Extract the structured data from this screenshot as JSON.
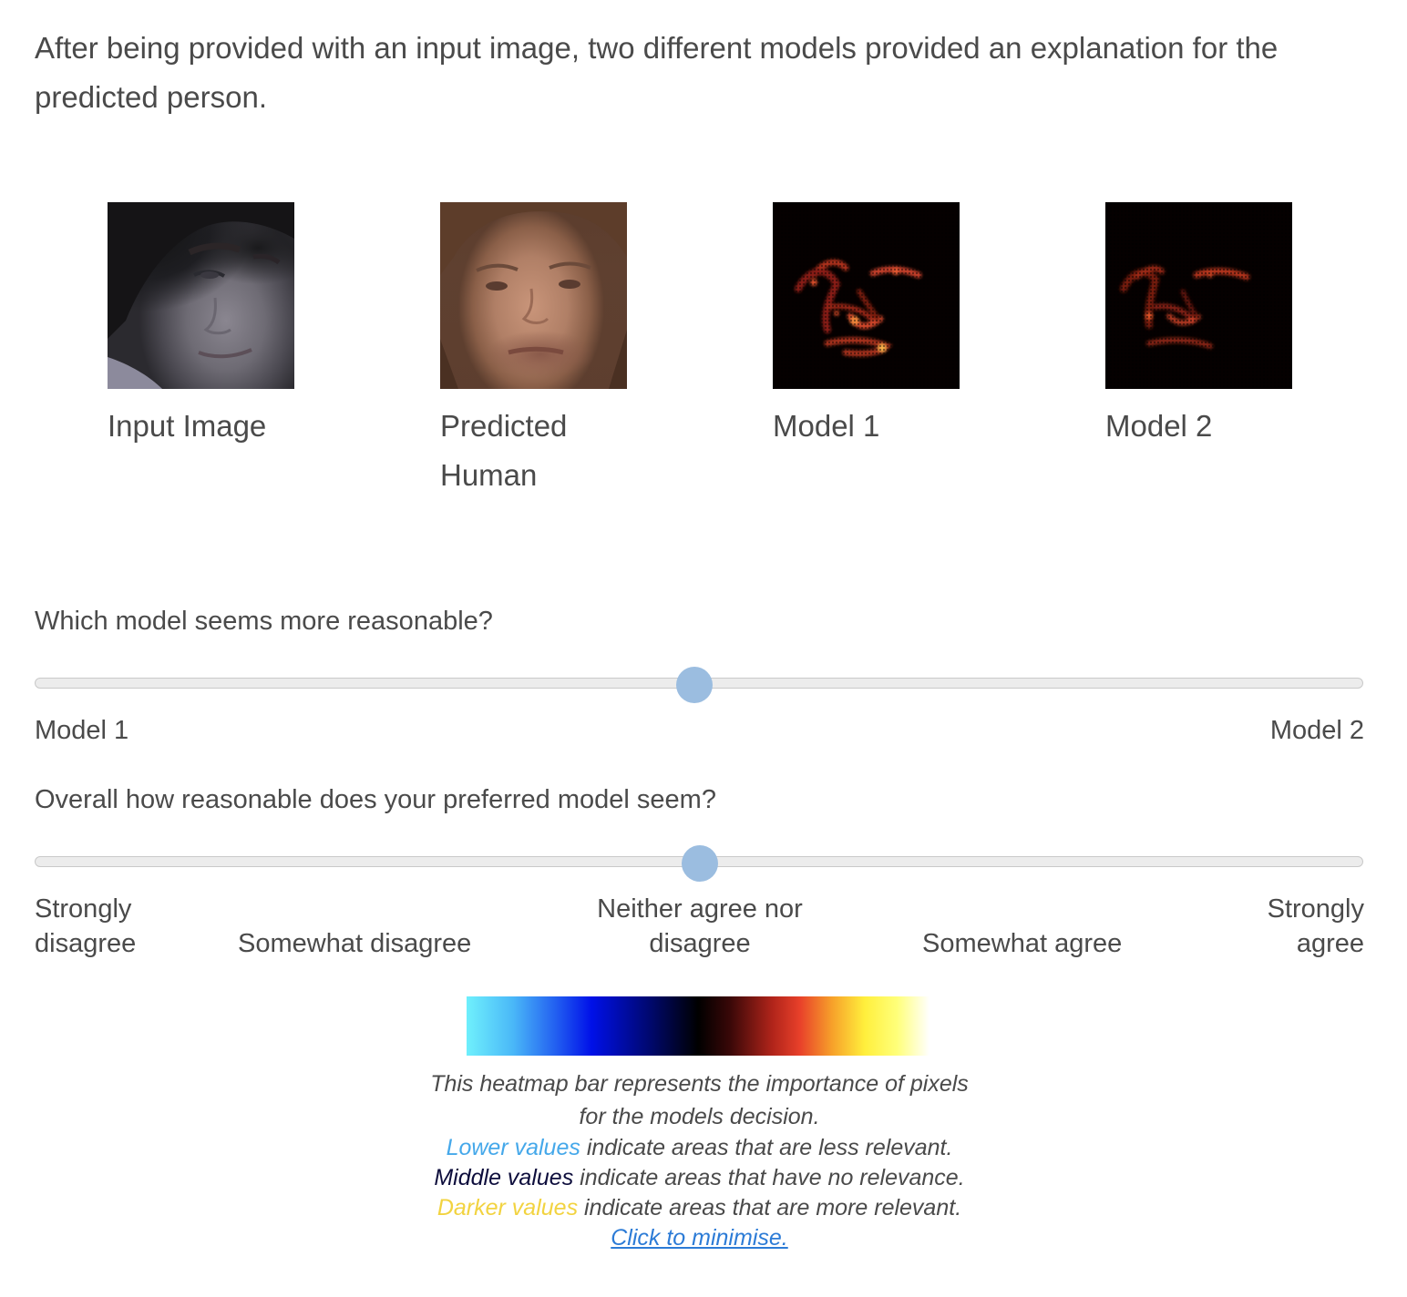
{
  "intro": "After being provided with an input image, two different models provided an explanation for the predicted person.",
  "images": [
    {
      "caption": "Input Image",
      "icon": "input-face-image"
    },
    {
      "caption": "Predicted Human",
      "icon": "predicted-face-image"
    },
    {
      "caption": "Model 1",
      "icon": "model1-heatmap-image"
    },
    {
      "caption": "Model 2",
      "icon": "model2-heatmap-image"
    }
  ],
  "q1": {
    "question": "Which model seems more reasonable?",
    "value": 0.5,
    "min_label": "Model 1",
    "max_label": "Model 2"
  },
  "q2": {
    "question": "Overall how reasonable does your preferred model seem?",
    "value": 0.5,
    "labels": [
      "Strongly disagree",
      "Somewhat disagree",
      "Neither agree nor disagree",
      "Somewhat agree",
      "Strongly agree"
    ]
  },
  "legend": {
    "line1": "This heatmap bar represents the importance of pixels",
    "line2": "for the models decision.",
    "lower_label": "Lower values",
    "lower_text": " indicate areas that are less relevant.",
    "middle_label": "Middle values",
    "middle_text": " indicate areas that have no relevance.",
    "darker_label": "Darker values",
    "darker_text": " indicate areas that are more relevant.",
    "minimise_link": "Click to minimise."
  },
  "colors": {
    "slider_thumb": "#9bbde0",
    "lower": "#45a8ea",
    "middle": "#0d0d3c",
    "darker": "#f2d340",
    "link": "#2c7bd6"
  }
}
